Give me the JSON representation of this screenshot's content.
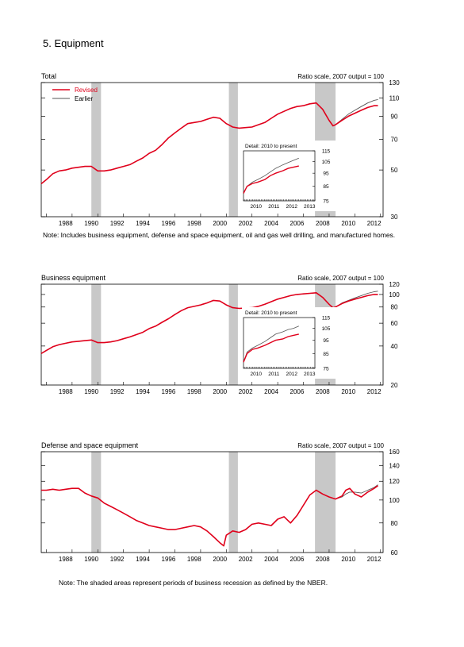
{
  "page_title": "5. Equipment",
  "notes": {
    "top": "Note: Includes business equipment, defense and space equipment, oil and gas well drilling, and manufactured homes.",
    "bottom": "Note: The shaded areas represent periods of business recession as defined by the NBER."
  },
  "colors": {
    "revised": "#e0001b",
    "earlier": "#555555",
    "recession": "#c8c8c8"
  },
  "chart_data": [
    {
      "type": "line",
      "title": "Total",
      "scale_label": "Ratio scale, 2007 output = 100",
      "y_scale": "log",
      "xlim": [
        1986.6,
        2013.2
      ],
      "ylim": [
        30,
        130
      ],
      "y_ticks": [
        30,
        50,
        70,
        90,
        110,
        130
      ],
      "x_ticks": [
        1988,
        1990,
        1992,
        1994,
        1996,
        1998,
        2000,
        2002,
        2004,
        2006,
        2008,
        2010,
        2012
      ],
      "legend": [
        "Revised",
        "Earlier"
      ],
      "legend_position": "top-left",
      "recessions": [
        [
          1990.5,
          1991.25
        ],
        [
          2001.2,
          2001.9
        ],
        [
          2007.9,
          2009.5
        ]
      ],
      "series": [
        {
          "name": "Revised",
          "x": [
            1986.6,
            1987,
            1987.5,
            1988,
            1988.5,
            1989,
            1989.5,
            1990,
            1990.5,
            1991,
            1991.5,
            1992,
            1992.5,
            1993,
            1993.5,
            1994,
            1994.5,
            1995,
            1995.5,
            1996,
            1996.5,
            1997,
            1997.5,
            1998,
            1998.5,
            1999,
            1999.5,
            2000,
            2000.5,
            2001,
            2001.5,
            2002,
            2002.5,
            2003,
            2003.5,
            2004,
            2004.5,
            2005,
            2005.5,
            2006,
            2006.5,
            2007,
            2007.5,
            2008,
            2008.5,
            2009,
            2009.3,
            2009.5,
            2010,
            2010.5,
            2011,
            2011.5,
            2012,
            2012.5,
            2012.8
          ],
          "y": [
            43,
            45,
            48,
            49.5,
            50,
            51,
            51.5,
            52,
            52,
            49.5,
            49.5,
            50,
            51,
            52,
            53,
            55,
            57,
            60,
            62,
            66,
            71,
            75,
            79,
            83,
            84,
            85,
            87,
            89,
            88,
            83,
            80,
            79,
            79.5,
            80,
            82,
            84,
            88,
            92,
            95,
            98,
            100,
            101,
            103,
            104,
            97,
            86,
            81,
            82,
            86,
            90,
            93,
            96,
            99,
            101,
            101
          ]
        },
        {
          "name": "Earlier",
          "x": [
            1986.6,
            1987,
            1987.5,
            1988,
            1988.5,
            1989,
            1989.5,
            1990,
            1990.5,
            1991,
            1991.5,
            1992,
            1992.5,
            1993,
            1993.5,
            1994,
            1994.5,
            1995,
            1995.5,
            1996,
            1996.5,
            1997,
            1997.5,
            1998,
            1998.5,
            1999,
            1999.5,
            2000,
            2000.5,
            2001,
            2001.5,
            2002,
            2002.5,
            2003,
            2003.5,
            2004,
            2004.5,
            2005,
            2005.5,
            2006,
            2006.5,
            2007,
            2007.5,
            2008,
            2008.5,
            2009,
            2009.3,
            2009.5,
            2010,
            2010.5,
            2011,
            2011.5,
            2012,
            2012.5,
            2012.8
          ],
          "y": [
            43,
            45,
            48,
            49.5,
            50,
            51,
            51.5,
            52,
            52,
            49.5,
            49.5,
            50,
            51,
            52,
            53,
            55,
            57,
            60,
            62,
            66,
            71,
            75,
            79,
            83,
            84,
            85,
            87,
            89,
            88,
            83,
            80,
            79,
            79.5,
            80,
            82,
            84,
            88,
            92,
            95,
            98,
            100,
            101,
            103,
            104,
            97,
            86,
            81,
            82,
            87,
            92,
            96,
            100,
            104,
            107,
            108
          ]
        }
      ],
      "inset": {
        "title": "Detail: 2010 to present",
        "y_scale": "log",
        "xlim": [
          2009.8,
          2013.8
        ],
        "ylim": [
          75,
          115
        ],
        "y_ticks": [
          75,
          85,
          95,
          105,
          115
        ],
        "x_ticks": [
          2010,
          2011,
          2012,
          2013
        ],
        "series": [
          {
            "name": "Revised",
            "x": [
              2009.8,
              2010,
              2010.3,
              2010.6,
              2011,
              2011.3,
              2011.6,
              2012,
              2012.3,
              2012.6,
              2012.9
            ],
            "y": [
              80,
              85,
              87,
              88,
              90,
              93,
              95,
              97,
              99,
              100,
              101
            ]
          },
          {
            "name": "Earlier",
            "x": [
              2009.8,
              2010,
              2010.3,
              2010.6,
              2011,
              2011.3,
              2011.6,
              2012,
              2012.3,
              2012.6,
              2012.9
            ],
            "y": [
              80,
              85,
              88,
              90,
              93,
              96,
              99,
              102,
              104,
              106,
              108
            ]
          }
        ]
      }
    },
    {
      "type": "line",
      "title": "Business equipment",
      "scale_label": "Ratio scale, 2007 output = 100",
      "y_scale": "log",
      "xlim": [
        1986.6,
        2013.2
      ],
      "ylim": [
        20,
        120
      ],
      "y_ticks": [
        20,
        40,
        60,
        80,
        100,
        120
      ],
      "x_ticks": [
        1988,
        1990,
        1992,
        1994,
        1996,
        1998,
        2000,
        2002,
        2004,
        2006,
        2008,
        2010,
        2012
      ],
      "recessions": [
        [
          1990.5,
          1991.25
        ],
        [
          2001.2,
          2001.9
        ],
        [
          2007.9,
          2009.5
        ]
      ],
      "series": [
        {
          "name": "Revised",
          "x": [
            1986.6,
            1987,
            1987.5,
            1988,
            1988.5,
            1989,
            1989.5,
            1990,
            1990.5,
            1991,
            1991.5,
            1992,
            1992.5,
            1993,
            1993.5,
            1994,
            1994.5,
            1995,
            1995.5,
            1996,
            1996.5,
            1997,
            1997.5,
            1998,
            1998.5,
            1999,
            1999.5,
            2000,
            2000.5,
            2001,
            2001.5,
            2002,
            2002.5,
            2003,
            2003.5,
            2004,
            2004.5,
            2005,
            2005.5,
            2006,
            2006.5,
            2007,
            2007.5,
            2008,
            2008.5,
            2009,
            2009.3,
            2009.5,
            2010,
            2010.5,
            2011,
            2011.5,
            2012,
            2012.5,
            2012.8
          ],
          "y": [
            35,
            37,
            39.5,
            41,
            42,
            43,
            43.5,
            44,
            44.5,
            42.5,
            42.5,
            43,
            44,
            45.5,
            47,
            49,
            51,
            54.5,
            57,
            61,
            65,
            70,
            75,
            79,
            81,
            83,
            86,
            90,
            89,
            83,
            79,
            78,
            78.5,
            79,
            81,
            84,
            88,
            92,
            95,
            98,
            100,
            101,
            102,
            103,
            95,
            84,
            79,
            80,
            85,
            89,
            92,
            95,
            98,
            100,
            100
          ]
        },
        {
          "name": "Earlier",
          "x": [
            1986.6,
            1987,
            1987.5,
            1988,
            1988.5,
            1989,
            1989.5,
            1990,
            1990.5,
            1991,
            1991.5,
            1992,
            1992.5,
            1993,
            1993.5,
            1994,
            1994.5,
            1995,
            1995.5,
            1996,
            1996.5,
            1997,
            1997.5,
            1998,
            1998.5,
            1999,
            1999.5,
            2000,
            2000.5,
            2001,
            2001.5,
            2002,
            2002.5,
            2003,
            2003.5,
            2004,
            2004.5,
            2005,
            2005.5,
            2006,
            2006.5,
            2007,
            2007.5,
            2008,
            2008.5,
            2009,
            2009.3,
            2009.5,
            2010,
            2010.5,
            2011,
            2011.5,
            2012,
            2012.5,
            2012.8
          ],
          "y": [
            35,
            37,
            39.5,
            41,
            42,
            43,
            43.5,
            44,
            44.5,
            42.5,
            42.5,
            43,
            44,
            45.5,
            47,
            49,
            51,
            54.5,
            57,
            61,
            65,
            70,
            75,
            79,
            81,
            83,
            86,
            90,
            89,
            83,
            79,
            78,
            78.5,
            79,
            81,
            84,
            88,
            92,
            95,
            98,
            100,
            101,
            102,
            103,
            95,
            84,
            79,
            80,
            86,
            90,
            94,
            98,
            102,
            105,
            106
          ]
        }
      ],
      "inset": {
        "title": "Detail: 2010 to present",
        "y_scale": "log",
        "xlim": [
          2009.8,
          2013.8
        ],
        "ylim": [
          75,
          115
        ],
        "y_ticks": [
          75,
          85,
          95,
          105,
          115
        ],
        "x_ticks": [
          2010,
          2011,
          2012,
          2013
        ],
        "series": [
          {
            "name": "Revised",
            "x": [
              2009.8,
              2010,
              2010.3,
              2010.6,
              2011,
              2011.3,
              2011.6,
              2012,
              2012.3,
              2012.6,
              2012.9
            ],
            "y": [
              79,
              85,
              88,
              89,
              91,
              93,
              95,
              96,
              98,
              99,
              100
            ]
          },
          {
            "name": "Earlier",
            "x": [
              2009.8,
              2010,
              2010.3,
              2010.6,
              2011,
              2011.3,
              2011.6,
              2012,
              2012.3,
              2012.6,
              2012.9
            ],
            "y": [
              79,
              86,
              89,
              91,
              94,
              97,
              100,
              102,
              104,
              105,
              107
            ]
          }
        ]
      }
    },
    {
      "type": "line",
      "title": "Defense and space equipment",
      "scale_label": "Ratio scale, 2007 output = 100",
      "y_scale": "log",
      "xlim": [
        1986.6,
        2013.2
      ],
      "ylim": [
        60,
        160
      ],
      "y_ticks": [
        60,
        80,
        100,
        120,
        140,
        160
      ],
      "x_ticks": [
        1988,
        1990,
        1992,
        1994,
        1996,
        1998,
        2000,
        2002,
        2004,
        2006,
        2008,
        2010,
        2012
      ],
      "recessions": [
        [
          1990.5,
          1991.25
        ],
        [
          2001.2,
          2001.9
        ],
        [
          2007.9,
          2009.5
        ]
      ],
      "series": [
        {
          "name": "Revised",
          "x": [
            1986.6,
            1987,
            1987.5,
            1988,
            1988.5,
            1989,
            1989.5,
            1990,
            1990.5,
            1991,
            1991.5,
            1992,
            1992.5,
            1993,
            1993.5,
            1994,
            1994.5,
            1995,
            1995.5,
            1996,
            1996.5,
            1997,
            1997.5,
            1998,
            1998.5,
            1999,
            1999.5,
            2000,
            2000.5,
            2000.8,
            2001,
            2001.5,
            2002,
            2002.5,
            2003,
            2003.5,
            2004,
            2004.5,
            2005,
            2005.5,
            2006,
            2006.5,
            2007,
            2007.5,
            2008,
            2008.5,
            2009,
            2009.5,
            2010,
            2010.3,
            2010.6,
            2011,
            2011.5,
            2012,
            2012.5,
            2012.8
          ],
          "y": [
            110,
            110,
            111,
            110,
            111,
            112,
            112,
            107,
            104,
            102,
            97,
            94,
            91,
            88,
            85,
            82,
            80,
            78,
            77,
            76,
            75,
            75,
            76,
            77,
            78,
            77,
            74,
            70,
            66,
            64,
            71,
            74,
            73,
            75,
            79,
            80,
            79,
            78,
            83,
            85,
            80,
            86,
            95,
            105,
            110,
            106,
            103,
            101,
            104,
            110,
            112,
            106,
            103,
            108,
            112,
            115
          ]
        },
        {
          "name": "Earlier",
          "x": [
            1986.6,
            1987,
            1987.5,
            1988,
            1988.5,
            1989,
            1989.5,
            1990,
            1990.5,
            1991,
            1991.5,
            1992,
            1992.5,
            1993,
            1993.5,
            1994,
            1994.5,
            1995,
            1995.5,
            1996,
            1996.5,
            1997,
            1997.5,
            1998,
            1998.5,
            1999,
            1999.5,
            2000,
            2000.5,
            2000.8,
            2001,
            2001.5,
            2002,
            2002.5,
            2003,
            2003.5,
            2004,
            2004.5,
            2005,
            2005.5,
            2006,
            2006.5,
            2007,
            2007.5,
            2008,
            2008.5,
            2009,
            2009.5,
            2010,
            2010.3,
            2010.6,
            2011,
            2011.5,
            2012,
            2012.5,
            2012.8
          ],
          "y": [
            110,
            110,
            111,
            110,
            111,
            112,
            112,
            107,
            104,
            102,
            97,
            94,
            91,
            88,
            85,
            82,
            80,
            78,
            77,
            76,
            75,
            75,
            76,
            77,
            78,
            77,
            74,
            70,
            66,
            64,
            71,
            74,
            73,
            75,
            79,
            80,
            79,
            78,
            83,
            85,
            80,
            86,
            95,
            105,
            110,
            106,
            103,
            101,
            103,
            106,
            108,
            108,
            107,
            110,
            113,
            116
          ]
        }
      ]
    }
  ]
}
